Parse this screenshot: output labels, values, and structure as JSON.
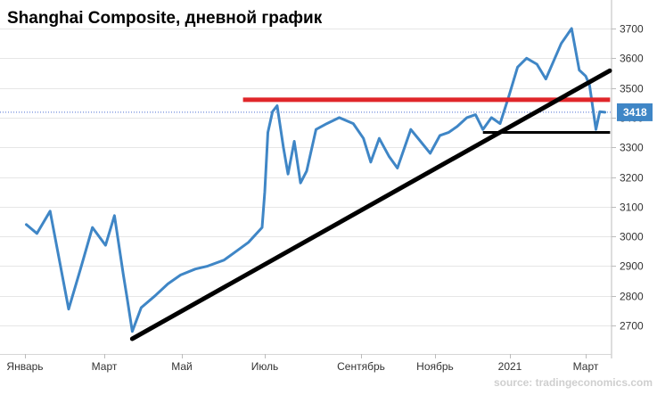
{
  "chart_data": {
    "type": "line",
    "title": "Shanghai Composite, дневной график",
    "xlabel": "",
    "ylabel": "",
    "x_tick_labels": [
      "Январь",
      "Март",
      "Май",
      "Июль",
      "Сентябрь",
      "Ноябрь",
      "2021",
      "Март"
    ],
    "y_ticks": [
      2700,
      2800,
      2900,
      3000,
      3100,
      3200,
      3300,
      3400,
      3500,
      3600,
      3700
    ],
    "ylim": [
      2615,
      3770
    ],
    "grid": true,
    "legend": "none",
    "last_value_label": "3418",
    "colors": {
      "line": "#3f86c6",
      "resistance": "#e0262a",
      "trendline": "#000000",
      "support": "#000000",
      "last_value_badge": "#3f86c6",
      "last_value_dotted": "#4a6cd4"
    },
    "series": [
      {
        "x": [
          "2020-01-02",
          "2020-01-10",
          "2020-01-20",
          "2020-02-03",
          "2020-02-12",
          "2020-02-21",
          "2020-03-02",
          "2020-03-09",
          "2020-03-16",
          "2020-03-19",
          "2020-03-23",
          "2020-03-30",
          "2020-04-10",
          "2020-04-20",
          "2020-04-30",
          "2020-05-11",
          "2020-05-20",
          "2020-06-01",
          "2020-06-10",
          "2020-06-19",
          "2020-06-29",
          "2020-07-01",
          "2020-07-03",
          "2020-07-06",
          "2020-07-09",
          "2020-07-13",
          "2020-07-16",
          "2020-07-20",
          "2020-07-24",
          "2020-07-28",
          "2020-08-03",
          "2020-08-10",
          "2020-08-18",
          "2020-08-27",
          "2020-09-03",
          "2020-09-09",
          "2020-09-16",
          "2020-09-24",
          "2020-10-01",
          "2020-10-12",
          "2020-10-20",
          "2020-10-28",
          "2020-11-05",
          "2020-11-12",
          "2020-11-19",
          "2020-11-27",
          "2020-12-04",
          "2020-12-10",
          "2020-12-17",
          "2020-12-24",
          "2020-12-31",
          "2021-01-07",
          "2021-01-14",
          "2021-01-22",
          "2021-01-29",
          "2021-02-05",
          "2021-02-10",
          "2021-02-18",
          "2021-02-24",
          "2021-03-01",
          "2021-03-04",
          "2021-03-09",
          "2021-03-12",
          "2021-03-16"
        ],
        "y": [
          3040,
          3010,
          3085,
          2755,
          2890,
          3030,
          2970,
          3070,
          2870,
          2790,
          2680,
          2760,
          2800,
          2840,
          2870,
          2890,
          2900,
          2920,
          2950,
          2980,
          3030,
          3150,
          3350,
          3420,
          3440,
          3300,
          3210,
          3320,
          3180,
          3220,
          3360,
          3380,
          3400,
          3380,
          3330,
          3250,
          3330,
          3270,
          3230,
          3360,
          3320,
          3280,
          3340,
          3350,
          3370,
          3400,
          3410,
          3360,
          3400,
          3380,
          3470,
          3570,
          3600,
          3580,
          3530,
          3600,
          3650,
          3700,
          3560,
          3540,
          3510,
          3360,
          3420,
          3418
        ]
      }
    ],
    "annotations": [
      {
        "type": "horizontal",
        "name": "resistance",
        "value": 3460,
        "from": "2020-06-15",
        "to": "2021-03-20"
      },
      {
        "type": "horizontal",
        "name": "support",
        "value": 3350,
        "from": "2020-12-10",
        "to": "2021-03-20"
      },
      {
        "type": "trendline",
        "name": "uptrend",
        "from": [
          "2020-03-23",
          2655
        ],
        "to": [
          "2021-03-20",
          3558
        ]
      }
    ],
    "source": "source: tradingeconomics.com"
  }
}
